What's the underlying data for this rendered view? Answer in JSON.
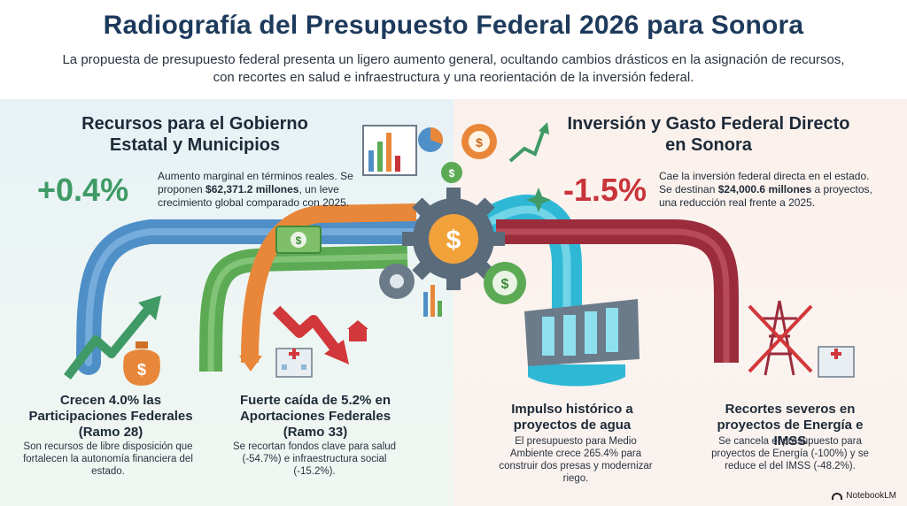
{
  "header": {
    "title": "Radiografía del Presupuesto Federal 2026 para Sonora",
    "subtitle": "La propuesta de presupuesto federal presenta un ligero aumento general, ocultando cambios drásticos en la asignación de recursos, con recortes en salud e infraestructura y una reorientación de la inversión federal."
  },
  "left": {
    "title": "Recursos para el Gobierno Estatal y Municipios",
    "big_value": "+0.4%",
    "desc_intro": "Aumento marginal en términos reales. Se proponen ",
    "desc_amount": "$62,371.2 millones",
    "desc_rest": ", un leve crecimiento global comparado con 2025.",
    "cards": [
      {
        "title": "Crecen 4.0% las Participaciones Federales (Ramo 28)",
        "desc": "Son recursos de libre disposición que fortalecen la autonomía financiera del estado."
      },
      {
        "title": "Fuerte caída de 5.2% en Aportaciones Federales (Ramo 33)",
        "desc": "Se recortan fondos clave para salud (-54.7%) e infraestructura social (-15.2%)."
      }
    ]
  },
  "right": {
    "title": "Inversión y Gasto Federal Directo en Sonora",
    "big_value": "-1.5%",
    "desc_intro": "Cae la inversión federal directa en el estado. Se destinan ",
    "desc_amount": "$24,000.6 millones",
    "desc_rest": " a proyectos, una reducción real frente a 2025.",
    "cards": [
      {
        "title": "Impulso histórico a proyectos de agua",
        "desc": "El presupuesto para Medio Ambiente crece 265.4% para construir dos presas y modernizar riego."
      },
      {
        "title": "Recortes severos en proyectos de Energía e IMSS",
        "desc": "Se cancela el presupuesto para proyectos de Energía (-100%) y se reduce el del IMSS (-48.2%)."
      }
    ]
  },
  "brand": "NotebookLM",
  "colors": {
    "title": "#1d3a5c",
    "positive": "#3f9a66",
    "negative": "#c8343a",
    "pipe_blue": "#4f8fc8",
    "pipe_green": "#5daa55",
    "pipe_orange": "#e8873a",
    "pipe_red": "#9b2c3c",
    "water": "#2fb8d6"
  },
  "icons": [
    "dollar-bag-icon",
    "growth-arrow-icon",
    "decline-arrow-icon",
    "hospital-icon",
    "gear-dollar-icon",
    "bar-chart-icon",
    "pie-chart-icon",
    "dam-icon",
    "power-tower-icon",
    "cash-icon"
  ]
}
